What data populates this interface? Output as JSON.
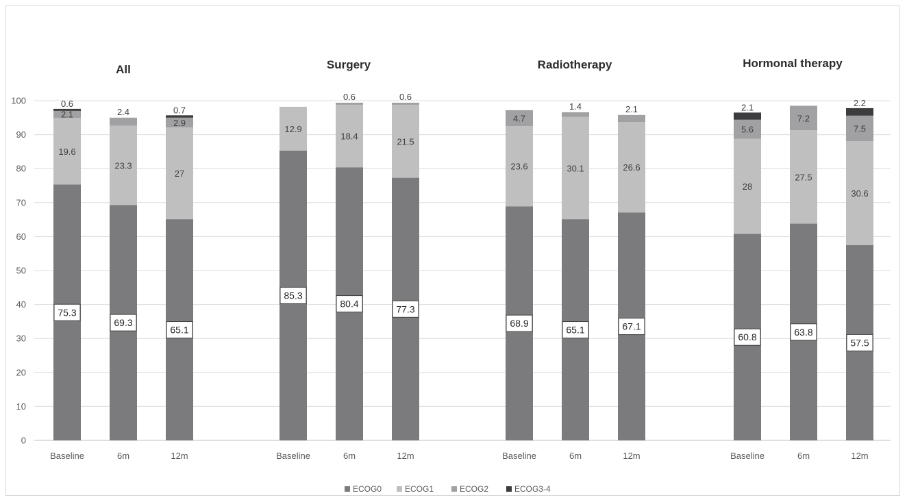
{
  "chart_data": {
    "type": "bar",
    "stacked": true,
    "title": "",
    "xlabel": "",
    "ylabel": "",
    "ylim": [
      0,
      100
    ],
    "yticks": [
      0,
      10,
      20,
      30,
      40,
      50,
      60,
      70,
      80,
      90,
      100
    ],
    "grid": true,
    "legend_position": "bottom",
    "series_names": [
      "ECOG0",
      "ECOG1",
      "ECOG2",
      "ECOG3-4"
    ],
    "colors": {
      "ECOG0": "#7b7b7d",
      "ECOG1": "#bfbfbf",
      "ECOG2": "#a1a1a3",
      "ECOG3-4": "#3c3c3e"
    },
    "groups": [
      {
        "title": "All",
        "bars": [
          {
            "category": "Baseline",
            "values": [
              75.3,
              19.6,
              2.1,
              0.6
            ]
          },
          {
            "category": "6m",
            "values": [
              69.3,
              23.3,
              2.4,
              0
            ]
          },
          {
            "category": "12m",
            "values": [
              65.1,
              27,
              2.9,
              0.7
            ]
          }
        ]
      },
      {
        "title": "Surgery",
        "bars": [
          {
            "category": "Baseline",
            "values": [
              85.3,
              12.9,
              0,
              0
            ]
          },
          {
            "category": "6m",
            "values": [
              80.4,
              18.4,
              0.6,
              0
            ]
          },
          {
            "category": "12m",
            "values": [
              77.3,
              21.5,
              0.6,
              0
            ]
          }
        ]
      },
      {
        "title": "Radiotherapy",
        "bars": [
          {
            "category": "Baseline",
            "values": [
              68.9,
              23.6,
              4.7,
              0
            ]
          },
          {
            "category": "6m",
            "values": [
              65.1,
              30.1,
              1.4,
              0
            ]
          },
          {
            "category": "12m",
            "values": [
              67.1,
              26.6,
              2.1,
              0
            ]
          }
        ]
      },
      {
        "title": "Hormonal therapy",
        "bars": [
          {
            "category": "Baseline",
            "values": [
              60.8,
              28,
              5.6,
              2.1
            ]
          },
          {
            "category": "6m",
            "values": [
              63.8,
              27.5,
              7.2,
              0
            ]
          },
          {
            "category": "12m",
            "values": [
              57.5,
              30.6,
              7.5,
              2.2
            ]
          }
        ]
      }
    ]
  }
}
